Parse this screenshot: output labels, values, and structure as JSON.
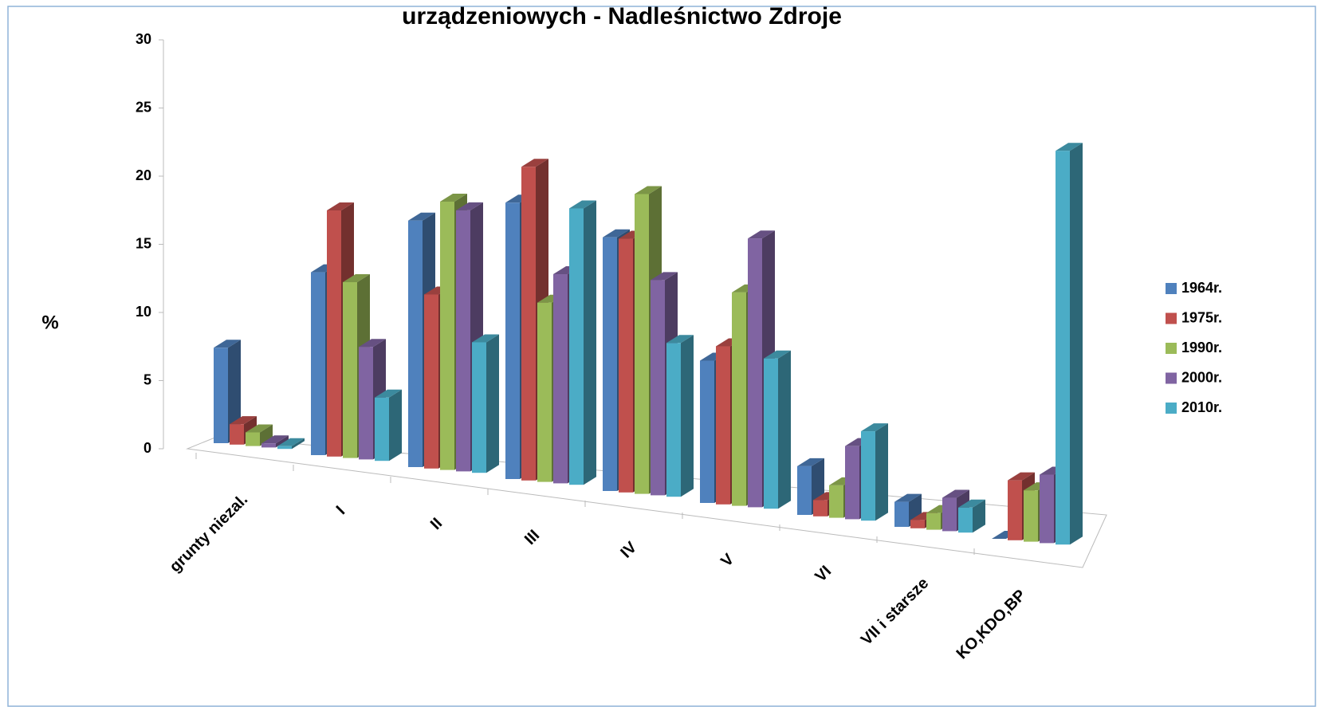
{
  "chart_data": {
    "type": "bar3d",
    "title": "urządzeniowych - Nadleśnictwo Zdroje",
    "y_label": "%",
    "categories": [
      "grunty niezal.",
      "I",
      "II",
      "III",
      "IV",
      "V",
      "VI",
      "VII i starsze",
      "KO,KDO,BP"
    ],
    "series": [
      {
        "name": "1964r.",
        "color": "#4f81bd",
        "values": [
          7,
          13,
          17,
          18.5,
          16.5,
          9,
          3,
          1.5,
          0
        ]
      },
      {
        "name": "1975r.",
        "color": "#c0504d",
        "values": [
          1.5,
          17.5,
          12,
          21,
          16.5,
          10,
          1,
          0.5,
          3.5
        ]
      },
      {
        "name": "1990r.",
        "color": "#9bbb59",
        "values": [
          1,
          12.5,
          18.5,
          12,
          19.5,
          13.5,
          2,
          1,
          3
        ]
      },
      {
        "name": "2000r.",
        "color": "#8064a2",
        "values": [
          0.3,
          8,
          18,
          14,
          14,
          17,
          4.5,
          2,
          4
        ]
      },
      {
        "name": "2010r.",
        "color": "#4bacc6",
        "values": [
          0.2,
          4.5,
          9,
          18.5,
          10,
          9.5,
          5.5,
          1.5,
          23
        ]
      }
    ],
    "ylim": [
      0,
      30
    ],
    "yticks": [
      0,
      5,
      10,
      15,
      20,
      25,
      30
    ]
  }
}
